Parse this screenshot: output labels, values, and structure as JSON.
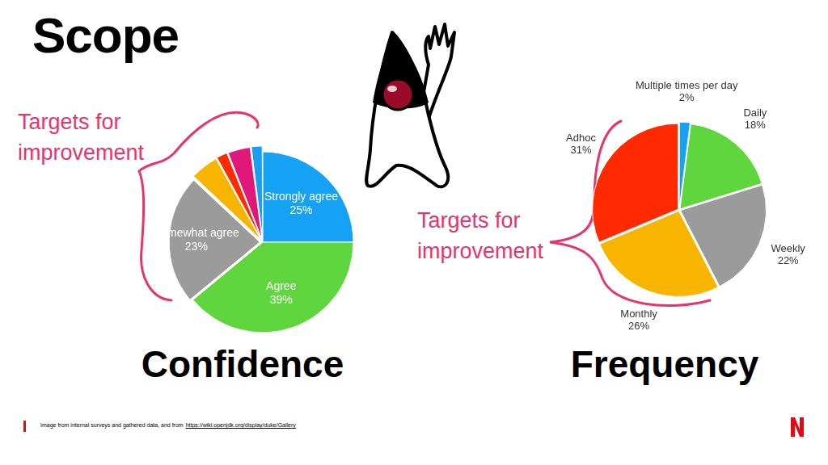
{
  "title": "Scope",
  "source_note": "Image from internal surveys and gathered data, and from",
  "source_url": "https://wiki.openjdk.org/display/duke/Gallery",
  "chart_data": [
    {
      "type": "pie",
      "title": "Confidence",
      "annotation": "Targets for improvement",
      "categories": [
        "Strongly agree",
        "Agree",
        "Somewhat agree",
        null,
        null,
        null,
        null
      ],
      "values": [
        25,
        39,
        23,
        5,
        2,
        4,
        2
      ],
      "value_labels": [
        "25%",
        "39%",
        "23%",
        null,
        null,
        null,
        null
      ],
      "colors": [
        "#16a2f4",
        "#5fd63d",
        "#9b9b9b",
        "#f7b500",
        "#ff2a00",
        "#e0187a",
        "#1a9ff0"
      ],
      "data_labels": true
    },
    {
      "type": "pie",
      "title": "Frequency",
      "annotation": "Targets for improvement",
      "categories": [
        "Multiple times per day",
        "Daily",
        "Weekly",
        "Monthly",
        "Adhoc"
      ],
      "values": [
        2,
        18,
        22,
        26,
        31
      ],
      "value_labels": [
        "2%",
        "18%",
        "22%",
        "26%",
        "31%"
      ],
      "colors": [
        "#16a2f4",
        "#5fd63d",
        "#9b9b9b",
        "#f7b500",
        "#ff2a00"
      ],
      "data_labels": true
    }
  ]
}
